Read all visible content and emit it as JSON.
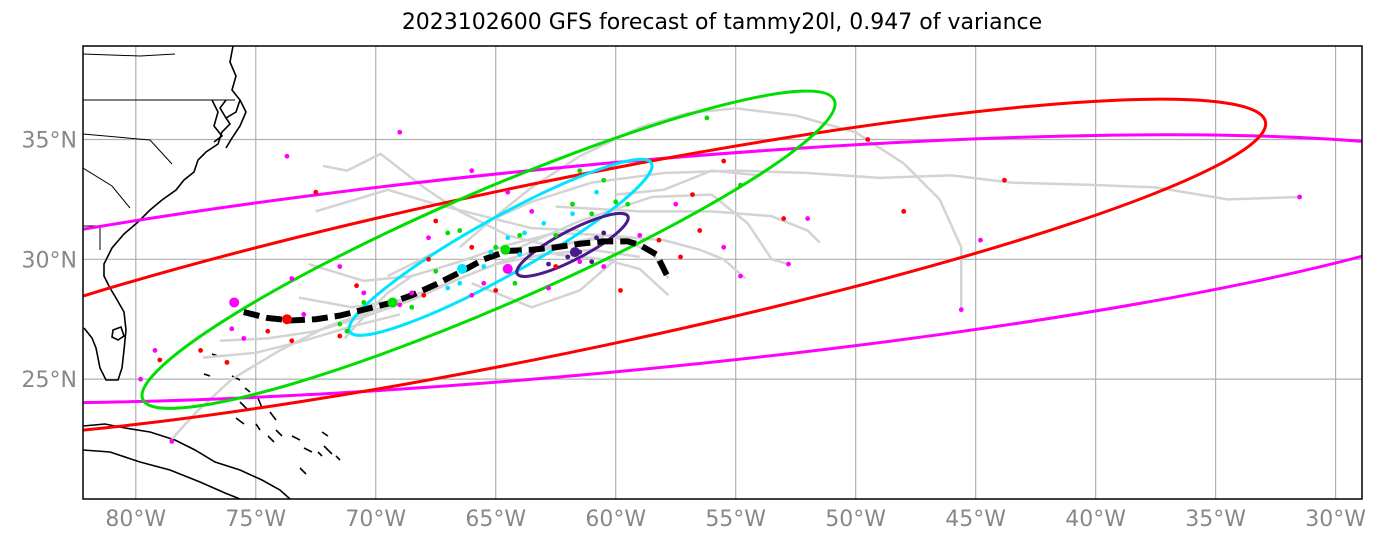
{
  "title": "2023102600 GFS forecast of tammy20l, 0.947 of variance",
  "axes": {
    "lon_range": [
      -82.2,
      -28.9
    ],
    "lat_range": [
      20.0,
      38.9
    ],
    "lon_ticks": [
      -80,
      -75,
      -70,
      -65,
      -60,
      -55,
      -50,
      -45,
      -40,
      -35,
      -30
    ],
    "lon_tick_labels": [
      "80°W",
      "75°W",
      "70°W",
      "65°W",
      "60°W",
      "55°W",
      "50°W",
      "45°W",
      "40°W",
      "35°W",
      "30°W"
    ],
    "lat_ticks": [
      25,
      30,
      35
    ],
    "lat_tick_labels": [
      "25°N",
      "30°N",
      "35°N"
    ],
    "grid": true
  },
  "colors": {
    "grid": "#b0b0b0",
    "ensemble": "#d3d3d3",
    "mean_track": "#000000",
    "coast": "#000000",
    "red": "#ff0000",
    "green": "#00dd00",
    "cyan": "#00e5ff",
    "purple": "#4b1a8c",
    "magenta": "#ff00ff"
  },
  "chart_data": {
    "type": "map",
    "mean_track": [
      [
        -75.5,
        27.8
      ],
      [
        -74.5,
        27.55
      ],
      [
        -73.5,
        27.45
      ],
      [
        -72.5,
        27.5
      ],
      [
        -71.5,
        27.65
      ],
      [
        -70.5,
        27.9
      ],
      [
        -69.5,
        28.15
      ],
      [
        -68.5,
        28.5
      ],
      [
        -67.5,
        28.95
      ],
      [
        -66.5,
        29.45
      ],
      [
        -65.5,
        30.0
      ],
      [
        -64.5,
        30.35
      ],
      [
        -63.5,
        30.4
      ],
      [
        -62.5,
        30.5
      ],
      [
        -61.5,
        30.65
      ],
      [
        -60.5,
        30.75
      ],
      [
        -59.5,
        30.75
      ],
      [
        -59.0,
        30.6
      ],
      [
        -58.3,
        30.2
      ],
      [
        -57.8,
        29.2
      ]
    ],
    "ensemble_tracks": [
      [
        [
          -72.8,
          29.8
        ],
        [
          -70.5,
          29.1
        ],
        [
          -68.5,
          29.3
        ],
        [
          -66.5,
          29.9
        ],
        [
          -64.5,
          30.6
        ],
        [
          -62.5,
          31.1
        ],
        [
          -60.2,
          31.0
        ],
        [
          -58.5,
          30.3
        ],
        [
          -57.8,
          29.2
        ]
      ],
      [
        [
          -73.2,
          28.4
        ],
        [
          -71.0,
          28.0
        ],
        [
          -69.0,
          28.3
        ],
        [
          -67.0,
          29.0
        ],
        [
          -65.0,
          29.8
        ],
        [
          -63.0,
          30.2
        ],
        [
          -61.0,
          30.4
        ],
        [
          -59.0,
          30.1
        ]
      ],
      [
        [
          -76.5,
          26.6
        ],
        [
          -74.5,
          26.7
        ],
        [
          -72.5,
          27.0
        ],
        [
          -70.5,
          27.6
        ],
        [
          -68.5,
          28.3
        ],
        [
          -66.5,
          29.2
        ],
        [
          -64.5,
          30.0
        ],
        [
          -62.5,
          30.6
        ],
        [
          -60.5,
          30.9
        ]
      ],
      [
        [
          -72.5,
          32.0
        ],
        [
          -69.5,
          32.9
        ],
        [
          -67.5,
          32.3
        ],
        [
          -65.5,
          31.8
        ],
        [
          -63.5,
          31.3
        ],
        [
          -61.5,
          31.2
        ]
      ],
      [
        [
          -72.2,
          33.9
        ],
        [
          -71.2,
          33.7
        ],
        [
          -69.8,
          34.4
        ],
        [
          -68.0,
          33.0
        ],
        [
          -66.5,
          32.0
        ],
        [
          -64.5,
          31.0
        ],
        [
          -62.5,
          30.5
        ]
      ],
      [
        [
          -69.5,
          29.3
        ],
        [
          -67.5,
          30.3
        ],
        [
          -65.3,
          31.6
        ],
        [
          -63.5,
          32.4
        ],
        [
          -61.0,
          33.2
        ],
        [
          -58.0,
          33.6
        ],
        [
          -55.0,
          33.7
        ],
        [
          -52.0,
          33.6
        ],
        [
          -49.0,
          33.4
        ],
        [
          -46.0,
          33.5
        ],
        [
          -43.5,
          33.2
        ],
        [
          -40.0,
          33.1
        ],
        [
          -37.5,
          33.0
        ],
        [
          -34.5,
          32.5
        ],
        [
          -31.5,
          32.6
        ]
      ],
      [
        [
          -66.5,
          30.5
        ],
        [
          -65.0,
          31.8
        ],
        [
          -63.5,
          33.0
        ],
        [
          -61.5,
          34.3
        ],
        [
          -59.0,
          35.5
        ],
        [
          -57.0,
          36.1
        ],
        [
          -55.0,
          36.3
        ],
        [
          -52.5,
          36.0
        ],
        [
          -50.0,
          35.3
        ],
        [
          -48.0,
          34.0
        ],
        [
          -46.5,
          32.5
        ],
        [
          -45.6,
          30.5
        ],
        [
          -45.6,
          27.8
        ]
      ],
      [
        [
          -66.0,
          29.0
        ],
        [
          -63.5,
          28.0
        ],
        [
          -61.5,
          28.7
        ],
        [
          -60.0,
          30.0
        ]
      ],
      [
        [
          -62.5,
          32.2
        ],
        [
          -59.0,
          32.0
        ],
        [
          -56.0,
          32.0
        ],
        [
          -53.5,
          31.8
        ],
        [
          -52.0,
          31.2
        ],
        [
          -51.5,
          30.7
        ]
      ],
      [
        [
          -64.0,
          30.5
        ],
        [
          -61.5,
          31.6
        ],
        [
          -58.5,
          32.6
        ],
        [
          -56.0,
          32.7
        ],
        [
          -54.5,
          31.5
        ],
        [
          -53.5,
          30.0
        ],
        [
          -52.8,
          29.8
        ]
      ],
      [
        [
          -63.0,
          30.4
        ],
        [
          -60.5,
          31.0
        ],
        [
          -58.0,
          30.8
        ],
        [
          -56.5,
          30.4
        ],
        [
          -55.5,
          30.0
        ],
        [
          -54.6,
          29.2
        ]
      ],
      [
        [
          -60.0,
          32.7
        ],
        [
          -58.0,
          32.9
        ],
        [
          -56.0,
          33.7
        ],
        [
          -54.0,
          33.5
        ]
      ],
      [
        [
          -78.5,
          22.5
        ],
        [
          -77.5,
          23.6
        ],
        [
          -76.0,
          25.0
        ],
        [
          -74.0,
          26.2
        ],
        [
          -72.0,
          27.2
        ],
        [
          -70.0,
          27.9
        ],
        [
          -68.0,
          28.5
        ]
      ],
      [
        [
          -77.2,
          25.9
        ],
        [
          -75.0,
          26.1
        ],
        [
          -73.0,
          26.6
        ],
        [
          -71.0,
          27.2
        ],
        [
          -69.0,
          27.7
        ]
      ],
      [
        [
          -71.3,
          26.7
        ],
        [
          -70.5,
          27.6
        ],
        [
          -69.5,
          28.6
        ],
        [
          -68.5,
          29.3
        ]
      ],
      [
        [
          -62.5,
          30.2
        ],
        [
          -60.5,
          30.0
        ],
        [
          -59.0,
          29.6
        ],
        [
          -57.8,
          28.5
        ]
      ]
    ],
    "end_points": {
      "red": [
        [
          -79.0,
          25.8
        ],
        [
          -77.3,
          26.2
        ],
        [
          -76.2,
          25.7
        ],
        [
          -74.5,
          27.0
        ],
        [
          -73.5,
          26.6
        ],
        [
          -71.5,
          26.8
        ],
        [
          -72.5,
          32.8
        ],
        [
          -67.5,
          31.6
        ],
        [
          -62.5,
          29.7
        ],
        [
          -59.8,
          28.7
        ],
        [
          -58.2,
          30.8
        ],
        [
          -57.3,
          30.1
        ],
        [
          -56.8,
          32.7
        ],
        [
          -55.5,
          34.1
        ],
        [
          -53.0,
          31.7
        ],
        [
          -49.5,
          35.0
        ],
        [
          -48.0,
          32.0
        ],
        [
          -43.8,
          33.3
        ],
        [
          -56.5,
          31.2
        ],
        [
          -68.0,
          28.5
        ],
        [
          -70.8,
          28.9
        ],
        [
          -65.0,
          28.7
        ],
        [
          -66.0,
          30.5
        ],
        [
          -67.8,
          30.0
        ]
      ],
      "green": [
        [
          -71.5,
          27.3
        ],
        [
          -71.2,
          27.0
        ],
        [
          -70.5,
          28.2
        ],
        [
          -68.5,
          28.0
        ],
        [
          -67.0,
          31.1
        ],
        [
          -66.5,
          31.2
        ],
        [
          -64.0,
          31.0
        ],
        [
          -62.5,
          31.0
        ],
        [
          -61.0,
          31.9
        ],
        [
          -60.5,
          33.3
        ],
        [
          -61.5,
          33.7
        ],
        [
          -56.2,
          35.9
        ],
        [
          -54.8,
          33.1
        ],
        [
          -65.0,
          30.5
        ],
        [
          -64.2,
          29.0
        ],
        [
          -67.5,
          29.5
        ],
        [
          -60.0,
          32.4
        ],
        [
          -59.5,
          32.3
        ],
        [
          -61.8,
          32.3
        ]
      ],
      "magenta": [
        [
          -79.2,
          26.2
        ],
        [
          -79.8,
          25.0
        ],
        [
          -78.5,
          22.4
        ],
        [
          -76.0,
          27.1
        ],
        [
          -75.5,
          26.7
        ],
        [
          -73.5,
          29.2
        ],
        [
          -73.0,
          27.7
        ],
        [
          -71.5,
          29.7
        ],
        [
          -70.5,
          28.6
        ],
        [
          -69.0,
          28.1
        ],
        [
          -67.8,
          30.9
        ],
        [
          -66.0,
          33.7
        ],
        [
          -64.5,
          32.8
        ],
        [
          -63.5,
          32.0
        ],
        [
          -62.8,
          28.8
        ],
        [
          -69.0,
          35.3
        ],
        [
          -61.5,
          29.9
        ],
        [
          -60.5,
          29.7
        ],
        [
          -59.0,
          31.0
        ],
        [
          -55.5,
          30.5
        ],
        [
          -54.8,
          29.3
        ],
        [
          -52.0,
          31.7
        ],
        [
          -52.8,
          29.8
        ],
        [
          -44.8,
          30.8
        ],
        [
          -45.6,
          27.9
        ],
        [
          -31.5,
          32.6
        ],
        [
          -57.5,
          32.3
        ],
        [
          -65.5,
          29.0
        ],
        [
          -66.0,
          28.5
        ],
        [
          -68.5,
          28.6
        ],
        [
          -73.7,
          34.3
        ]
      ],
      "cyan": [
        [
          -66.5,
          29.0
        ],
        [
          -65.5,
          29.7
        ],
        [
          -65.2,
          30.3
        ],
        [
          -64.5,
          30.9
        ],
        [
          -63.8,
          31.1
        ],
        [
          -63.0,
          31.5
        ],
        [
          -61.8,
          31.9
        ],
        [
          -60.8,
          32.8
        ],
        [
          -67.0,
          28.8
        ],
        [
          -64.0,
          30.2
        ]
      ],
      "purple": [
        [
          -62.8,
          29.8
        ],
        [
          -62.0,
          30.1
        ],
        [
          -61.5,
          30.3
        ],
        [
          -60.8,
          30.9
        ],
        [
          -60.5,
          31.1
        ],
        [
          -61.0,
          29.9
        ]
      ]
    },
    "mean_points": [
      {
        "color": "magenta",
        "lon": -75.9,
        "lat": 28.2
      },
      {
        "color": "red",
        "lon": -73.7,
        "lat": 27.5
      },
      {
        "color": "green",
        "lon": -69.3,
        "lat": 28.2
      },
      {
        "color": "cyan",
        "lon": -66.4,
        "lat": 29.6
      },
      {
        "color": "magenta",
        "lon": -64.5,
        "lat": 29.6
      },
      {
        "color": "green",
        "lon": -64.6,
        "lat": 30.4
      },
      {
        "color": "purple",
        "lon": -61.7,
        "lat": 30.3
      }
    ],
    "ellipses": [
      {
        "color": "magenta",
        "clon": -60.8,
        "clat": 29.6,
        "rx": 38.3,
        "ry": 4.35,
        "angle": 5.3
      },
      {
        "color": "red",
        "clon": -62.8,
        "clat": 29.6,
        "rx": 30.5,
        "ry": 3.6,
        "angle": 11.6
      },
      {
        "color": "green",
        "clon": -65.3,
        "clat": 30.4,
        "rx": 15.7,
        "ry": 2.4,
        "angle": 23.4
      },
      {
        "color": "cyan",
        "clon": -64.8,
        "clat": 30.5,
        "rx": 7.2,
        "ry": 1.2,
        "angle": 29.2
      },
      {
        "color": "purple",
        "clon": -61.8,
        "clat": 30.6,
        "rx": 2.6,
        "ry": 0.6,
        "angle": 27.5
      }
    ]
  }
}
